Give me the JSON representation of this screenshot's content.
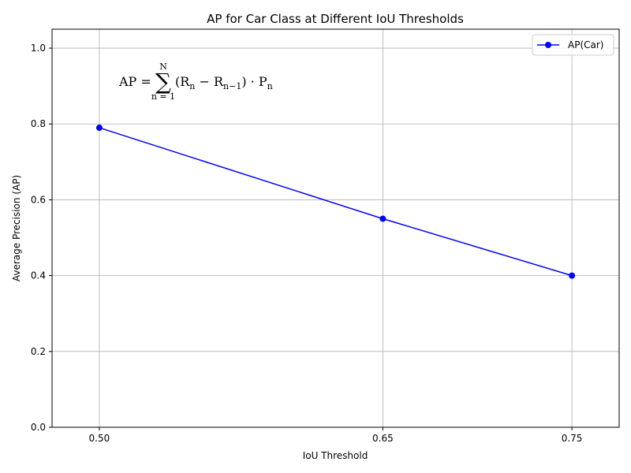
{
  "chart_data": {
    "type": "line",
    "title": "AP for Car Class at Different IoU Thresholds",
    "xlabel": "IoU Threshold",
    "ylabel": "Average Precision (AP)",
    "x": [
      0.5,
      0.65,
      0.75
    ],
    "x_tick_labels": [
      "0.50",
      "0.65",
      "0.75"
    ],
    "ylim": [
      0.0,
      1.05
    ],
    "y_ticks": [
      0.0,
      0.2,
      0.4,
      0.6,
      0.8,
      1.0
    ],
    "y_tick_labels": [
      "0.0",
      "0.2",
      "0.4",
      "0.6",
      "0.8",
      "1.0"
    ],
    "grid": true,
    "legend_position": "top-right",
    "series": [
      {
        "name": "AP(Car)",
        "values": [
          0.79,
          0.55,
          0.4
        ],
        "color": "#0000ff",
        "marker": "circle"
      }
    ],
    "annotation": {
      "lhs": "AP",
      "sum_upper": "N",
      "sum_lower": "n = 1",
      "body": "(R",
      "sub_n": "n",
      "minus": " − R",
      "sub_n1": "n−1",
      "close": ") · P",
      "sub_pn": "n"
    }
  }
}
